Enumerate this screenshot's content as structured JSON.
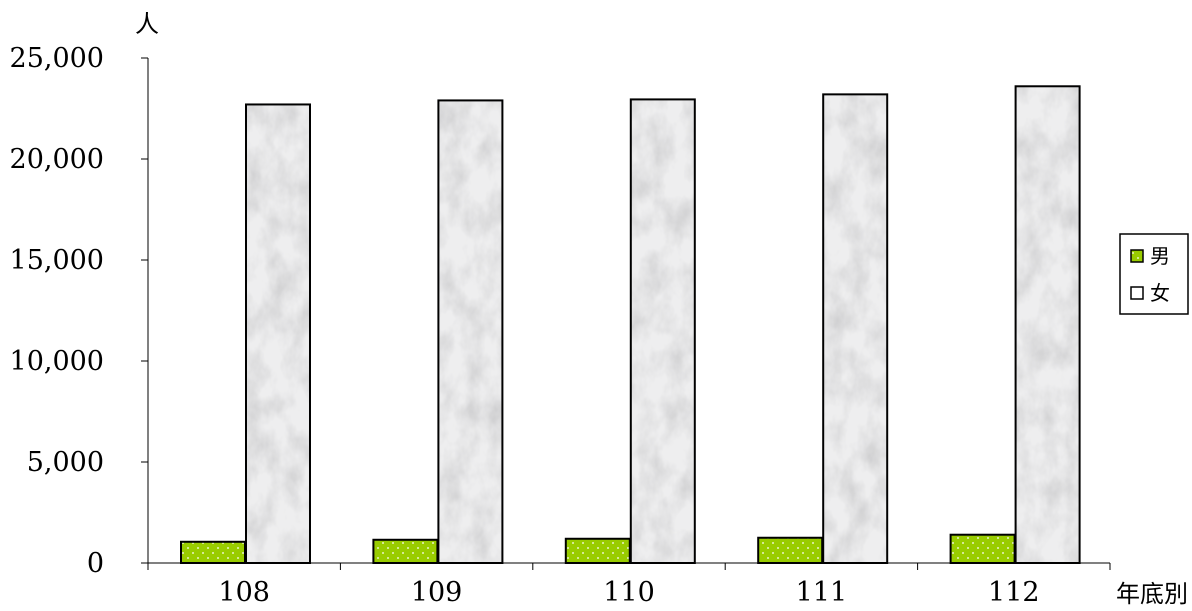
{
  "chart_data": {
    "type": "bar",
    "title": "",
    "ylabel": "人",
    "xlabel": "年底別",
    "categories": [
      "108",
      "109",
      "110",
      "111",
      "112"
    ],
    "series": [
      {
        "name": "男",
        "values": [
          1050,
          1150,
          1200,
          1250,
          1400
        ],
        "color": "#99cc00"
      },
      {
        "name": "女",
        "values": [
          22700,
          22900,
          22950,
          23200,
          23600
        ],
        "color": "#e6e6e6"
      }
    ],
    "ylim": [
      0,
      25000
    ],
    "yticks": [
      0,
      5000,
      10000,
      15000,
      20000,
      25000
    ],
    "ytick_labels": [
      "0",
      "5,000",
      "10,000",
      "15,000",
      "20,000",
      "25,000"
    ],
    "grid": false,
    "legend_position": "right"
  }
}
